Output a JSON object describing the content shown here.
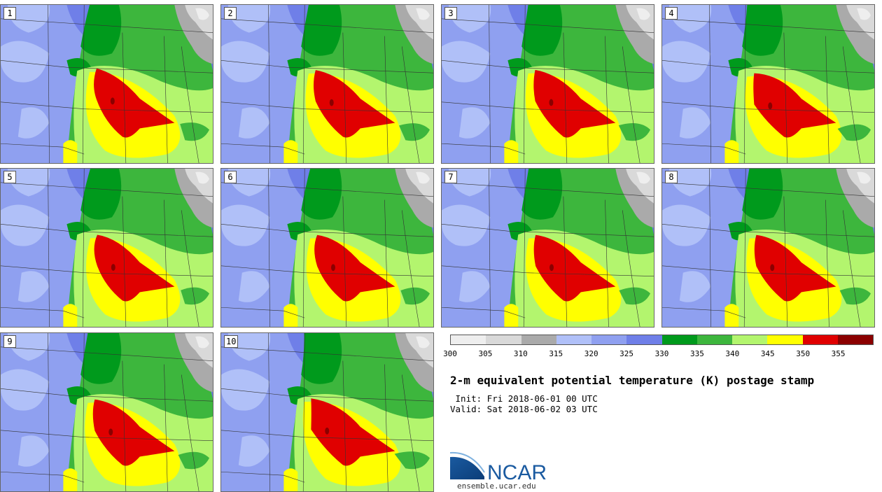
{
  "panels": [
    {
      "label": "1"
    },
    {
      "label": "2"
    },
    {
      "label": "3"
    },
    {
      "label": "4"
    },
    {
      "label": "5"
    },
    {
      "label": "6"
    },
    {
      "label": "7"
    },
    {
      "label": "8"
    },
    {
      "label": "9"
    },
    {
      "label": "10"
    }
  ],
  "colorbar": {
    "ticks": [
      "300",
      "305",
      "310",
      "315",
      "320",
      "325",
      "330",
      "335",
      "340",
      "345",
      "350",
      "355"
    ],
    "colors": [
      "#eeeeee",
      "#d9d9d9",
      "#aaaaaa",
      "#b0c0f8",
      "#8fa0f0",
      "#6f7fe8",
      "#009a1c",
      "#3db63d",
      "#b3f56e",
      "#ffff00",
      "#e00000",
      "#8b0000"
    ]
  },
  "title": "2-m equivalent potential temperature (K) postage stamp",
  "init": " Init: Fri 2018-06-01 00 UTC",
  "valid": "Valid: Sat 2018-06-02 03 UTC",
  "logo": {
    "text": "NCAR",
    "url": "ensemble.ucar.edu"
  }
}
